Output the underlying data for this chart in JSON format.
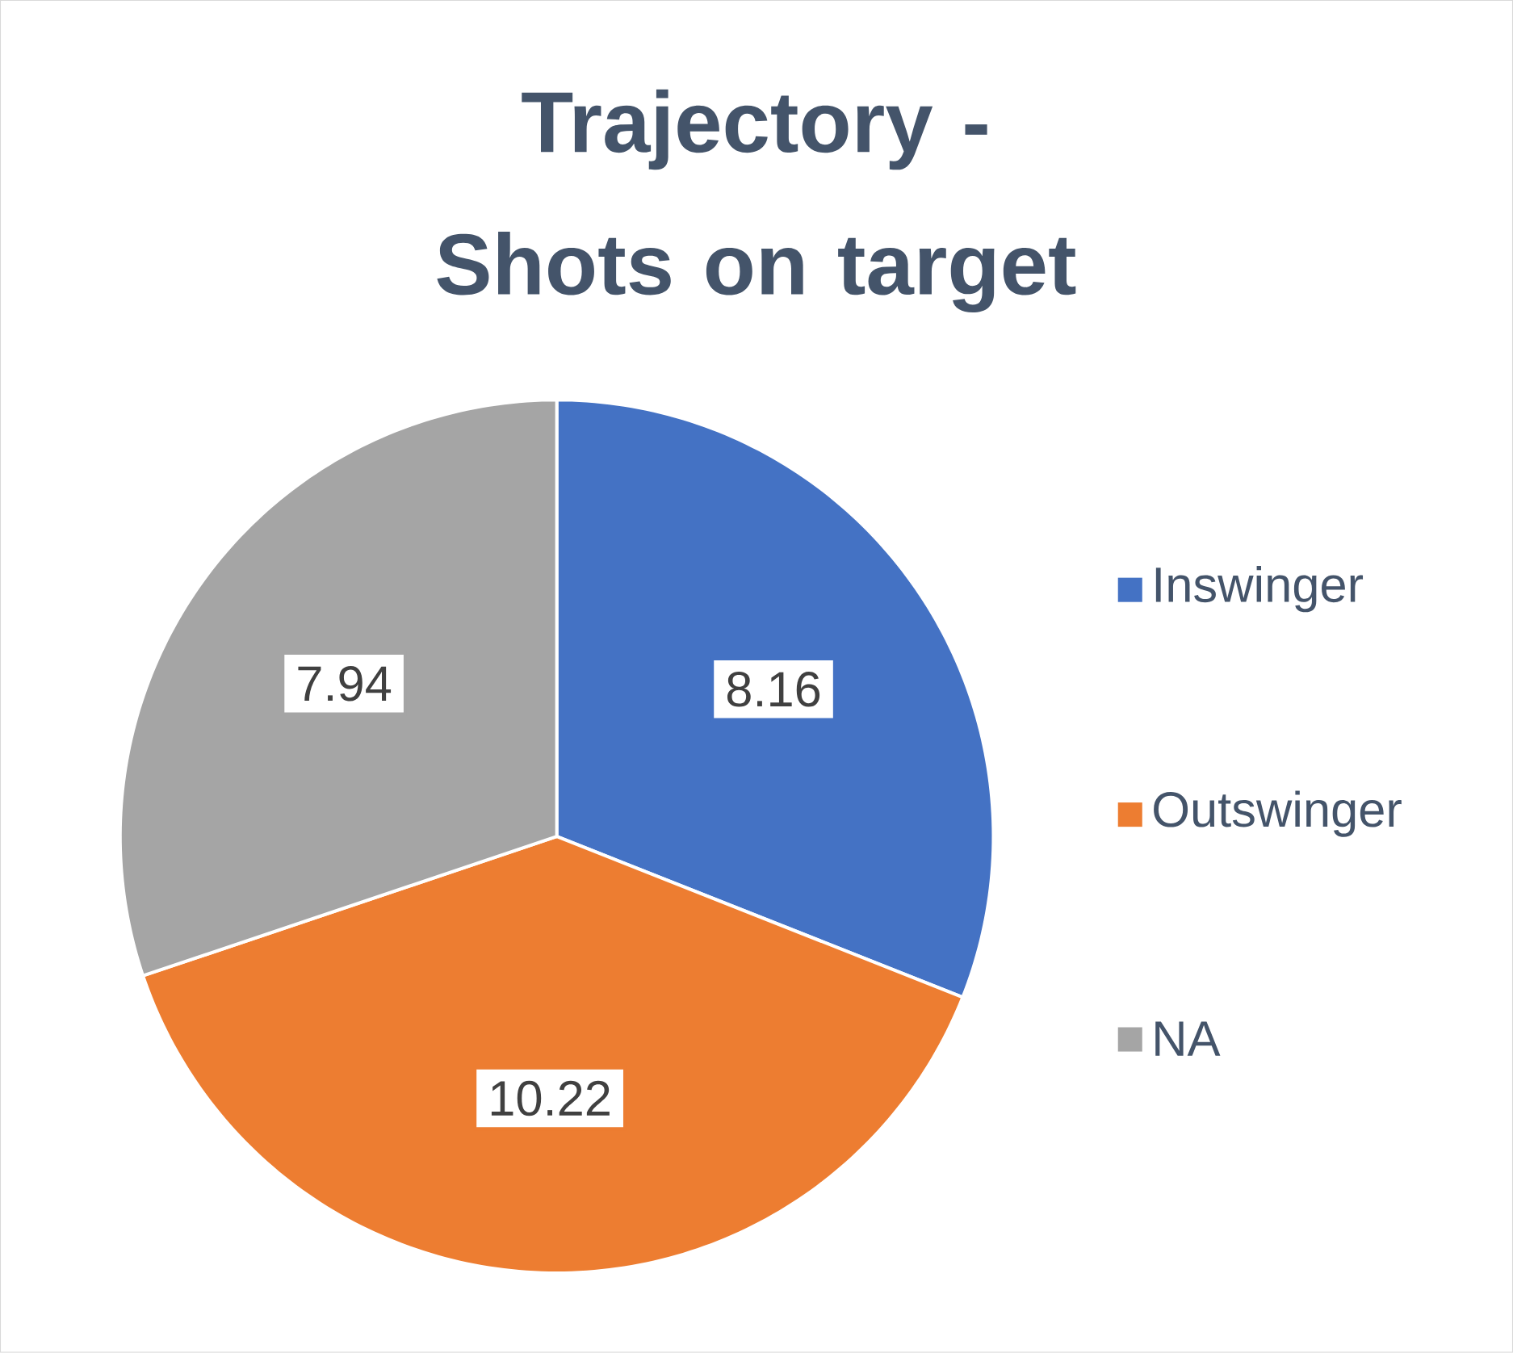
{
  "chart_data": {
    "type": "pie",
    "title": "Trajectory - Shots on target",
    "categories": [
      "Inswinger",
      "Outswinger",
      "NA"
    ],
    "values": [
      8.16,
      10.22,
      7.94
    ],
    "colors": [
      "#4472c4",
      "#ed7d31",
      "#a5a5a5"
    ],
    "data_labels": true,
    "legend": "right"
  }
}
